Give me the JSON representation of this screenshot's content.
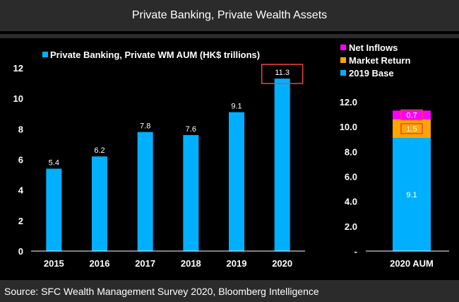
{
  "title": "Private Banking, Private Wealth Assets",
  "source": "Source: SFC Wealth Management Survey 2020, Bloomberg Intelligence",
  "colors": {
    "bar": "#00b0ff",
    "net_inflows": "#ff00ff",
    "market_return": "#ffa500",
    "base": "#00b0ff",
    "highlight": "#e8473a"
  },
  "chart_data": [
    {
      "type": "bar",
      "legend": "Private Banking, Private WM AUM (HK$ trillions)",
      "categories": [
        "2015",
        "2016",
        "2017",
        "2018",
        "2019",
        "2020"
      ],
      "values": [
        5.4,
        6.2,
        7.8,
        7.6,
        9.1,
        11.3
      ],
      "value_labels": [
        "5.4",
        "6.2",
        "7.8",
        "7.6",
        "9.1",
        "11.3"
      ],
      "ylim": [
        0,
        12
      ],
      "yticks": [
        "0",
        "2",
        "4",
        "6",
        "8",
        "10",
        "12"
      ],
      "highlighted_category": "2020"
    },
    {
      "type": "bar",
      "stacked": true,
      "categories": [
        "2020 AUM"
      ],
      "series": [
        {
          "name": "2019 Base",
          "values": [
            9.1
          ],
          "label": "9.1"
        },
        {
          "name": "Market Return",
          "values": [
            1.5
          ],
          "label": "1.5"
        },
        {
          "name": "Net Inflows",
          "values": [
            0.7
          ],
          "label": "0.7"
        }
      ],
      "legend_order": [
        "Net Inflows",
        "Market Return",
        "2019 Base"
      ],
      "ylim": [
        0,
        12
      ],
      "yticks": [
        "-",
        "2.0",
        "4.0",
        "6.0",
        "8.0",
        "10.0",
        "12.0"
      ]
    }
  ]
}
